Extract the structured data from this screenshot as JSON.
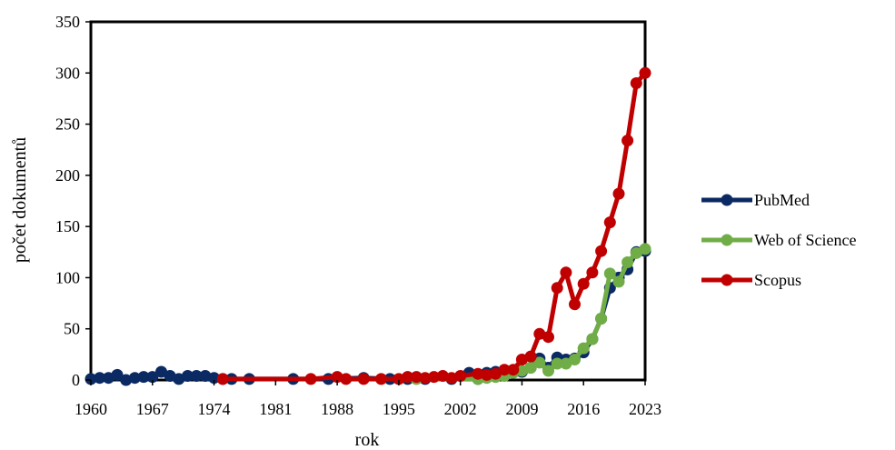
{
  "chart_data": {
    "type": "line",
    "xlabel": "rok",
    "ylabel": "počet dokumentů",
    "xlim": [
      1960,
      2023
    ],
    "ylim": [
      0,
      350
    ],
    "x_ticks": [
      1960,
      1967,
      1974,
      1981,
      1988,
      1995,
      2002,
      2009,
      2016,
      2023
    ],
    "y_ticks": [
      0,
      50,
      100,
      150,
      200,
      250,
      300,
      350
    ],
    "grid": false,
    "legend_position": "right",
    "series": [
      {
        "name": "PubMed",
        "color": "#0b2a63",
        "points": [
          [
            1960,
            1
          ],
          [
            1961,
            2
          ],
          [
            1962,
            2
          ],
          [
            1963,
            5
          ],
          [
            1964,
            0
          ],
          [
            1965,
            2
          ],
          [
            1966,
            3
          ],
          [
            1967,
            3
          ],
          [
            1968,
            8
          ],
          [
            1969,
            4
          ],
          [
            1970,
            1
          ],
          [
            1971,
            4
          ],
          [
            1972,
            4
          ],
          [
            1973,
            4
          ],
          [
            1974,
            2
          ],
          [
            1975,
            1
          ],
          [
            1976,
            1
          ],
          [
            1978,
            1
          ],
          [
            1983,
            1
          ],
          [
            1987,
            1
          ],
          [
            1991,
            2
          ],
          [
            1994,
            1
          ],
          [
            1996,
            1
          ],
          [
            1998,
            1
          ],
          [
            2001,
            1
          ],
          [
            2003,
            7
          ],
          [
            2004,
            1
          ],
          [
            2005,
            7
          ],
          [
            2006,
            8
          ],
          [
            2007,
            7
          ],
          [
            2008,
            8
          ],
          [
            2009,
            8
          ],
          [
            2010,
            12
          ],
          [
            2011,
            21
          ],
          [
            2012,
            12
          ],
          [
            2013,
            22
          ],
          [
            2014,
            20
          ],
          [
            2015,
            21
          ],
          [
            2016,
            27
          ],
          [
            2017,
            40
          ],
          [
            2018,
            60
          ],
          [
            2019,
            90
          ],
          [
            2020,
            100
          ],
          [
            2021,
            108
          ],
          [
            2022,
            125
          ],
          [
            2023,
            126
          ]
        ]
      },
      {
        "name": "Web of Science",
        "color": "#70ad47",
        "points": [
          [
            1997,
            1
          ],
          [
            2004,
            1
          ],
          [
            2005,
            2
          ],
          [
            2006,
            3
          ],
          [
            2007,
            4
          ],
          [
            2008,
            7
          ],
          [
            2009,
            9
          ],
          [
            2010,
            12
          ],
          [
            2011,
            17
          ],
          [
            2012,
            9
          ],
          [
            2013,
            16
          ],
          [
            2014,
            16
          ],
          [
            2015,
            20
          ],
          [
            2016,
            31
          ],
          [
            2017,
            40
          ],
          [
            2018,
            60
          ],
          [
            2019,
            104
          ],
          [
            2020,
            96
          ],
          [
            2021,
            115
          ],
          [
            2022,
            124
          ],
          [
            2023,
            128
          ]
        ]
      },
      {
        "name": "Scopus",
        "color": "#c00000",
        "points": [
          [
            1975,
            1
          ],
          [
            1985,
            1
          ],
          [
            1988,
            3
          ],
          [
            1989,
            1
          ],
          [
            1991,
            1
          ],
          [
            1993,
            1
          ],
          [
            1995,
            1
          ],
          [
            1996,
            3
          ],
          [
            1997,
            3
          ],
          [
            1998,
            2
          ],
          [
            1999,
            3
          ],
          [
            2000,
            4
          ],
          [
            2001,
            2
          ],
          [
            2002,
            4
          ],
          [
            2004,
            6
          ],
          [
            2005,
            5
          ],
          [
            2006,
            6
          ],
          [
            2007,
            10
          ],
          [
            2008,
            10
          ],
          [
            2009,
            20
          ],
          [
            2010,
            23
          ],
          [
            2011,
            45
          ],
          [
            2012,
            42
          ],
          [
            2013,
            90
          ],
          [
            2014,
            105
          ],
          [
            2015,
            74
          ],
          [
            2016,
            94
          ],
          [
            2017,
            105
          ],
          [
            2018,
            126
          ],
          [
            2019,
            154
          ],
          [
            2020,
            182
          ],
          [
            2021,
            234
          ],
          [
            2022,
            290
          ],
          [
            2023,
            300
          ]
        ]
      }
    ]
  }
}
